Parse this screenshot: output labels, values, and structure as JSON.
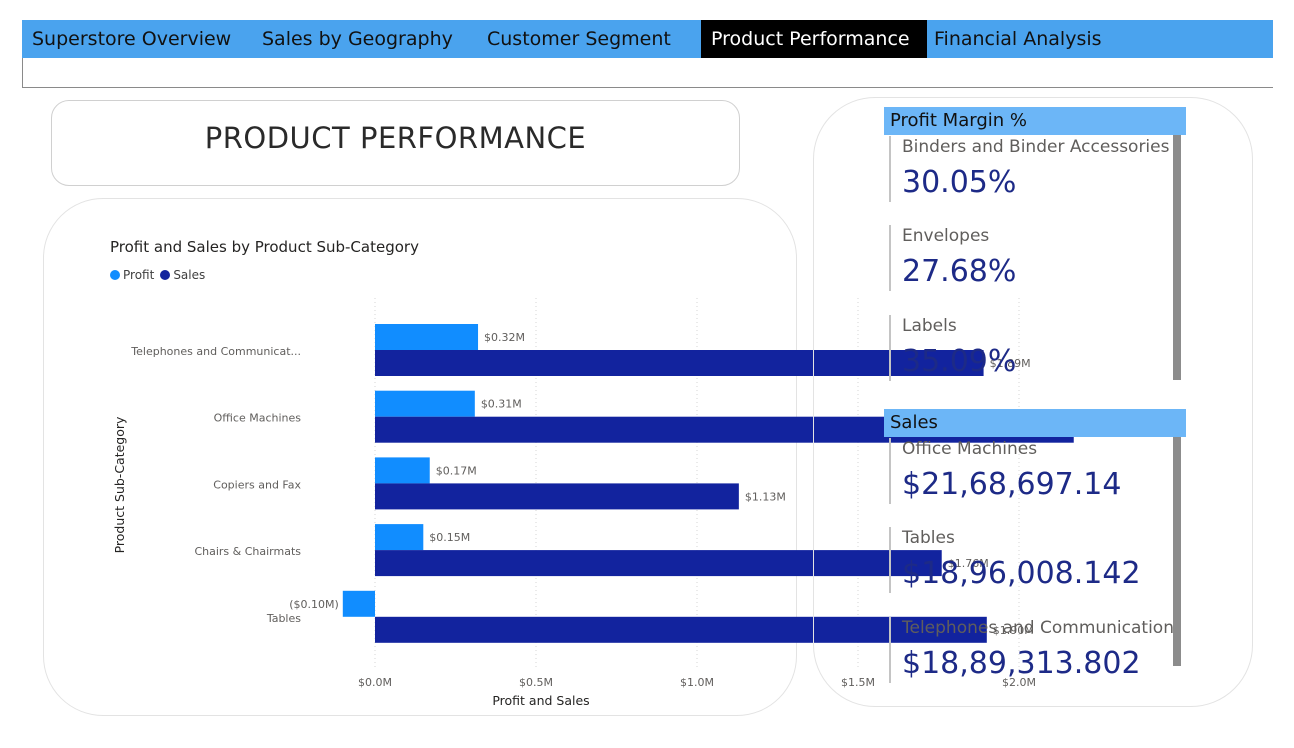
{
  "tabs": [
    {
      "label": "Superstore Overview",
      "active": false
    },
    {
      "label": "Sales by Geography",
      "active": false
    },
    {
      "label": "Customer Segment",
      "active": false
    },
    {
      "label": "Product Performance",
      "active": true
    },
    {
      "label": "Financial Analysis",
      "active": false
    }
  ],
  "page_title": "PRODUCT PERFORMANCE",
  "chart_data": {
    "type": "bar",
    "orientation": "horizontal",
    "title": "Profit and Sales by Product Sub-Category",
    "xlabel": "Profit and Sales",
    "ylabel": "Product Sub-Category",
    "categories": [
      "Telephones and Communicat...",
      "Office Machines",
      "Copiers and Fax",
      "Chairs & Chairmats",
      "Tables"
    ],
    "series": [
      {
        "name": "Profit",
        "color": "#118dff",
        "values": [
          0.32,
          0.31,
          0.17,
          0.15,
          -0.1
        ],
        "labels": [
          "$0.32M",
          "$0.31M",
          "$0.17M",
          "$0.15M",
          "($0.10M)"
        ]
      },
      {
        "name": "Sales",
        "color": "#12239e",
        "values": [
          1.89,
          2.17,
          1.13,
          1.76,
          1.9
        ],
        "labels": [
          "$1.89M",
          "$2.17M",
          "$1.13M",
          "$1.76M",
          "$1.90M"
        ]
      }
    ],
    "x_ticks": [
      0,
      0.5,
      1.0,
      1.5,
      2.0
    ],
    "x_tick_labels": [
      "$0.0M",
      "$0.5M",
      "$1.0M",
      "$1.5M",
      "$2.0M"
    ],
    "xlim": [
      -0.1,
      2.2
    ],
    "legend_position": "top-left",
    "grid": true
  },
  "profit_margin": {
    "title": "Profit Margin %",
    "items": [
      {
        "label": "Binders and Binder Accessories",
        "value": "30.05%"
      },
      {
        "label": "Envelopes",
        "value": "27.68%"
      },
      {
        "label": "Labels",
        "value": "35.09%"
      }
    ]
  },
  "sales": {
    "title": "Sales",
    "items": [
      {
        "label": "Office Machines",
        "value": "$21,68,697.14"
      },
      {
        "label": "Tables",
        "value": "$18,96,008.142"
      },
      {
        "label": "Telephones and Communication",
        "value": "$18,89,313.802"
      }
    ]
  },
  "colors": {
    "tab_bar": "#4aa3ee",
    "section_header": "#6cb6f7",
    "kpi_value": "#1d2a87"
  }
}
